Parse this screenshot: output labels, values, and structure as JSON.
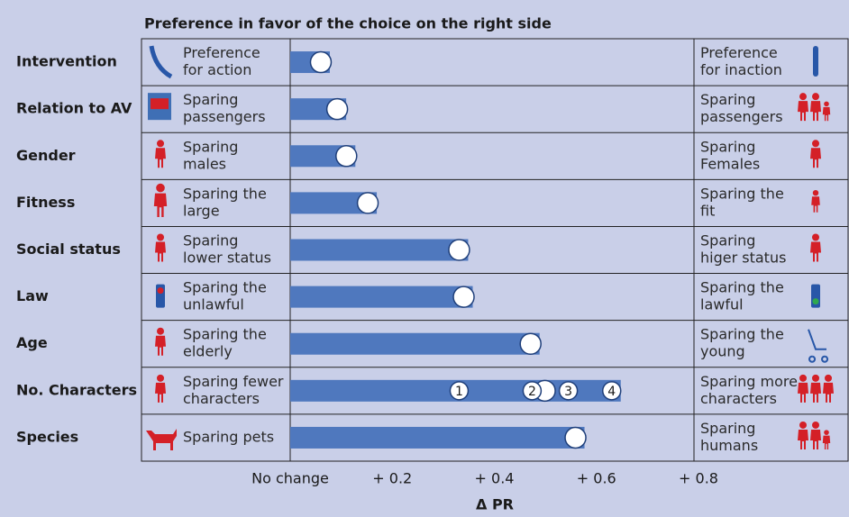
{
  "chart_data": {
    "type": "bar",
    "orientation": "horizontal",
    "title": "Preference in favor of the choice on the right side",
    "xlabel": "Δ PR",
    "categories": [
      "Intervention",
      "Relation to AV",
      "Gender",
      "Fitness",
      "Social status",
      "Law",
      "Age",
      "No. Characters",
      "Species"
    ],
    "left_labels": [
      [
        "Preference",
        "for action"
      ],
      [
        "Sparing",
        "passengers"
      ],
      [
        "Sparing",
        "males"
      ],
      [
        "Sparing the",
        "large"
      ],
      [
        "Sparing",
        "lower status"
      ],
      [
        "Sparing the",
        "unlawful"
      ],
      [
        "Sparing the",
        "elderly"
      ],
      [
        "Sparing fewer",
        "characters"
      ],
      [
        "Sparing pets"
      ]
    ],
    "right_labels": [
      [
        "Preference",
        "for inaction"
      ],
      [
        "Sparing",
        "passengers"
      ],
      [
        "Sparing",
        "Females"
      ],
      [
        "Sparing the",
        "fit"
      ],
      [
        "Sparing",
        "higer status"
      ],
      [
        "Sparing the",
        "lawful"
      ],
      [
        "Sparing the",
        "young"
      ],
      [
        "Sparing more",
        "characters"
      ],
      [
        "Sparing",
        "humans"
      ]
    ],
    "values": [
      0.06,
      0.092,
      0.11,
      0.152,
      0.331,
      0.34,
      0.471,
      0.499,
      0.559
    ],
    "numbered_points": {
      "row": 7,
      "points": [
        {
          "label": "1",
          "value": 0.331
        },
        {
          "label": "2",
          "value": 0.474
        },
        {
          "label": "3",
          "value": 0.545
        },
        {
          "label": "4",
          "value": 0.63
        }
      ]
    },
    "color": "#4f78be",
    "xlim": [
      0,
      0.8
    ],
    "xticks": [
      {
        "value": 0,
        "label": "No change"
      },
      {
        "value": 0.2,
        "label": "+ 0.2"
      },
      {
        "value": 0.4,
        "label": "+ 0.4"
      },
      {
        "value": 0.6,
        "label": "+ 0.6"
      },
      {
        "value": 0.8,
        "label": "+ 0.8"
      }
    ]
  }
}
